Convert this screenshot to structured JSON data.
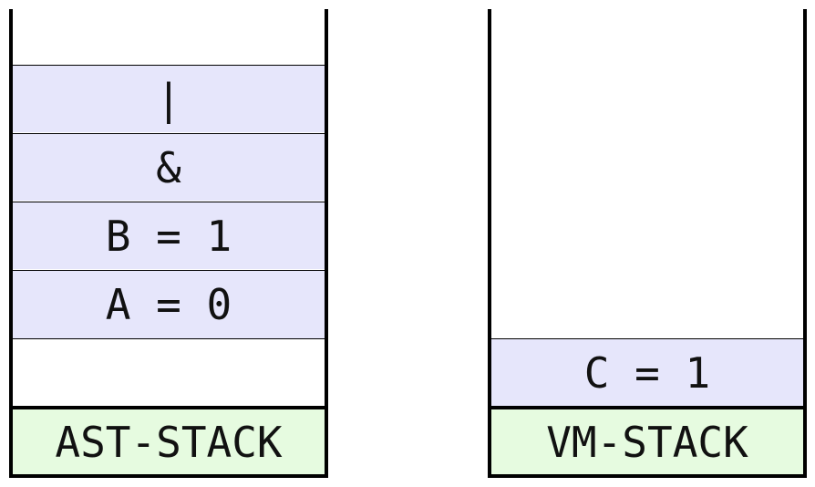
{
  "ast_stack": {
    "label": "AST-STACK",
    "items": [
      "|",
      "&",
      "B = 1",
      "A = 0"
    ]
  },
  "vm_stack": {
    "label": "VM-STACK",
    "items": [
      "C = 1"
    ]
  }
}
